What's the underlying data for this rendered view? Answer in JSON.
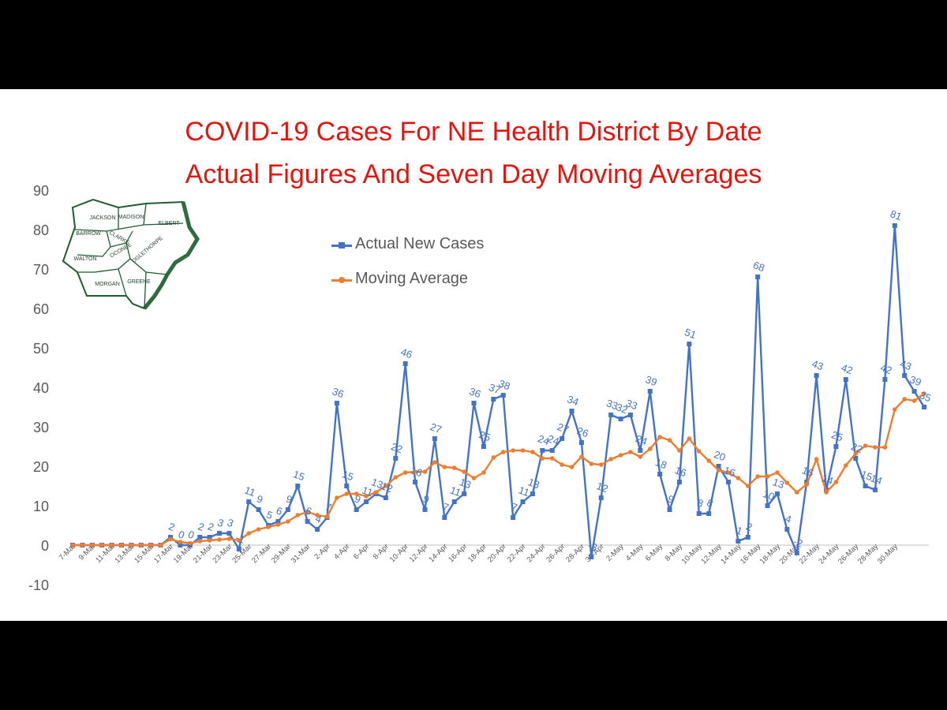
{
  "chart_data": {
    "type": "line",
    "title": "COVID-19 Cases For NE Health District By Date",
    "subtitle": "Actual Figures And Seven Day Moving Averages",
    "ylim": [
      -10,
      90
    ],
    "yticks": [
      -10,
      0,
      10,
      20,
      30,
      40,
      50,
      60,
      70,
      80,
      90
    ],
    "legend_position": "top-center",
    "x_tick_labels": [
      "7-Mar",
      "9-Mar",
      "11-Mar",
      "13-Mar",
      "15-Mar",
      "17-Mar",
      "19-Mar",
      "21-Mar",
      "23-Mar",
      "25-Mar",
      "27-Mar",
      "29-Mar",
      "31-Mar",
      "2-Apr",
      "4-Apr",
      "6-Apr",
      "8-Apr",
      "10-Apr",
      "12-Apr",
      "14-Apr",
      "16-Apr",
      "18-Apr",
      "20-Apr",
      "22-Apr",
      "24-Apr",
      "26-Apr",
      "28-Apr",
      "30-Apr",
      "2-May",
      "4-May",
      "6-May",
      "8-May",
      "10-May",
      "12-May",
      "14-May",
      "16-May",
      "18-May",
      "20-May",
      "22-May",
      "24-May",
      "26-May",
      "28-May",
      "30-May"
    ],
    "series": [
      {
        "name": "Actual New Cases",
        "color": "#4472C4",
        "data_labels": true,
        "values": [
          0,
          0,
          0,
          0,
          0,
          0,
          0,
          0,
          0,
          0,
          2,
          0,
          0,
          2,
          2,
          3,
          3,
          -1,
          11,
          9,
          5,
          6,
          9,
          15,
          6,
          4,
          7,
          36,
          15,
          9,
          11,
          13,
          12,
          22,
          46,
          16,
          9,
          27,
          7,
          11,
          13,
          36,
          25,
          37,
          38,
          7,
          11,
          13,
          24,
          24,
          27,
          34,
          26,
          -3,
          12,
          33,
          32,
          33,
          24,
          39,
          18,
          9,
          16,
          51,
          8,
          8,
          20,
          16,
          1,
          2,
          68,
          10,
          13,
          4,
          -2,
          16,
          43,
          14,
          25,
          42,
          22,
          15,
          14,
          42,
          81,
          43,
          39,
          35
        ]
      },
      {
        "name": "Moving Average",
        "color": "#ED7D31",
        "values": [
          0,
          0,
          0,
          0,
          0,
          0,
          0,
          0,
          0,
          0,
          1.5,
          0.8,
          0.5,
          1,
          1.2,
          1.4,
          1.6,
          1.2,
          3,
          4,
          4.6,
          5.2,
          6,
          7.6,
          8.4,
          7.6,
          7.2,
          12,
          13,
          13,
          12.4,
          13.4,
          15,
          17.2,
          18.4,
          18.6,
          18.6,
          21,
          19.8,
          19.6,
          18.6,
          17,
          18.4,
          22.2,
          23.6,
          24,
          24,
          23.6,
          22,
          22,
          20.4,
          19.8,
          22.4,
          20.6,
          20.4,
          21.8,
          22.8,
          23.6,
          22.4,
          24.4,
          27.4,
          26.6,
          24,
          27,
          23.8,
          21.4,
          19,
          18.4,
          17,
          15,
          17.4,
          17.4,
          18.4,
          15.8,
          13.4,
          15.4,
          21.8,
          13.4,
          16,
          20.2,
          23.2,
          25.2,
          24.8,
          24.8,
          34.4,
          37,
          36.6,
          38.4
        ]
      }
    ]
  },
  "map": {
    "counties": [
      "JACKSON",
      "MADISON",
      "ELBERT",
      "BARROW",
      "CLARKE",
      "OCONEE",
      "OGLETHORPE",
      "WALTON",
      "MORGAN",
      "GREENE"
    ]
  }
}
